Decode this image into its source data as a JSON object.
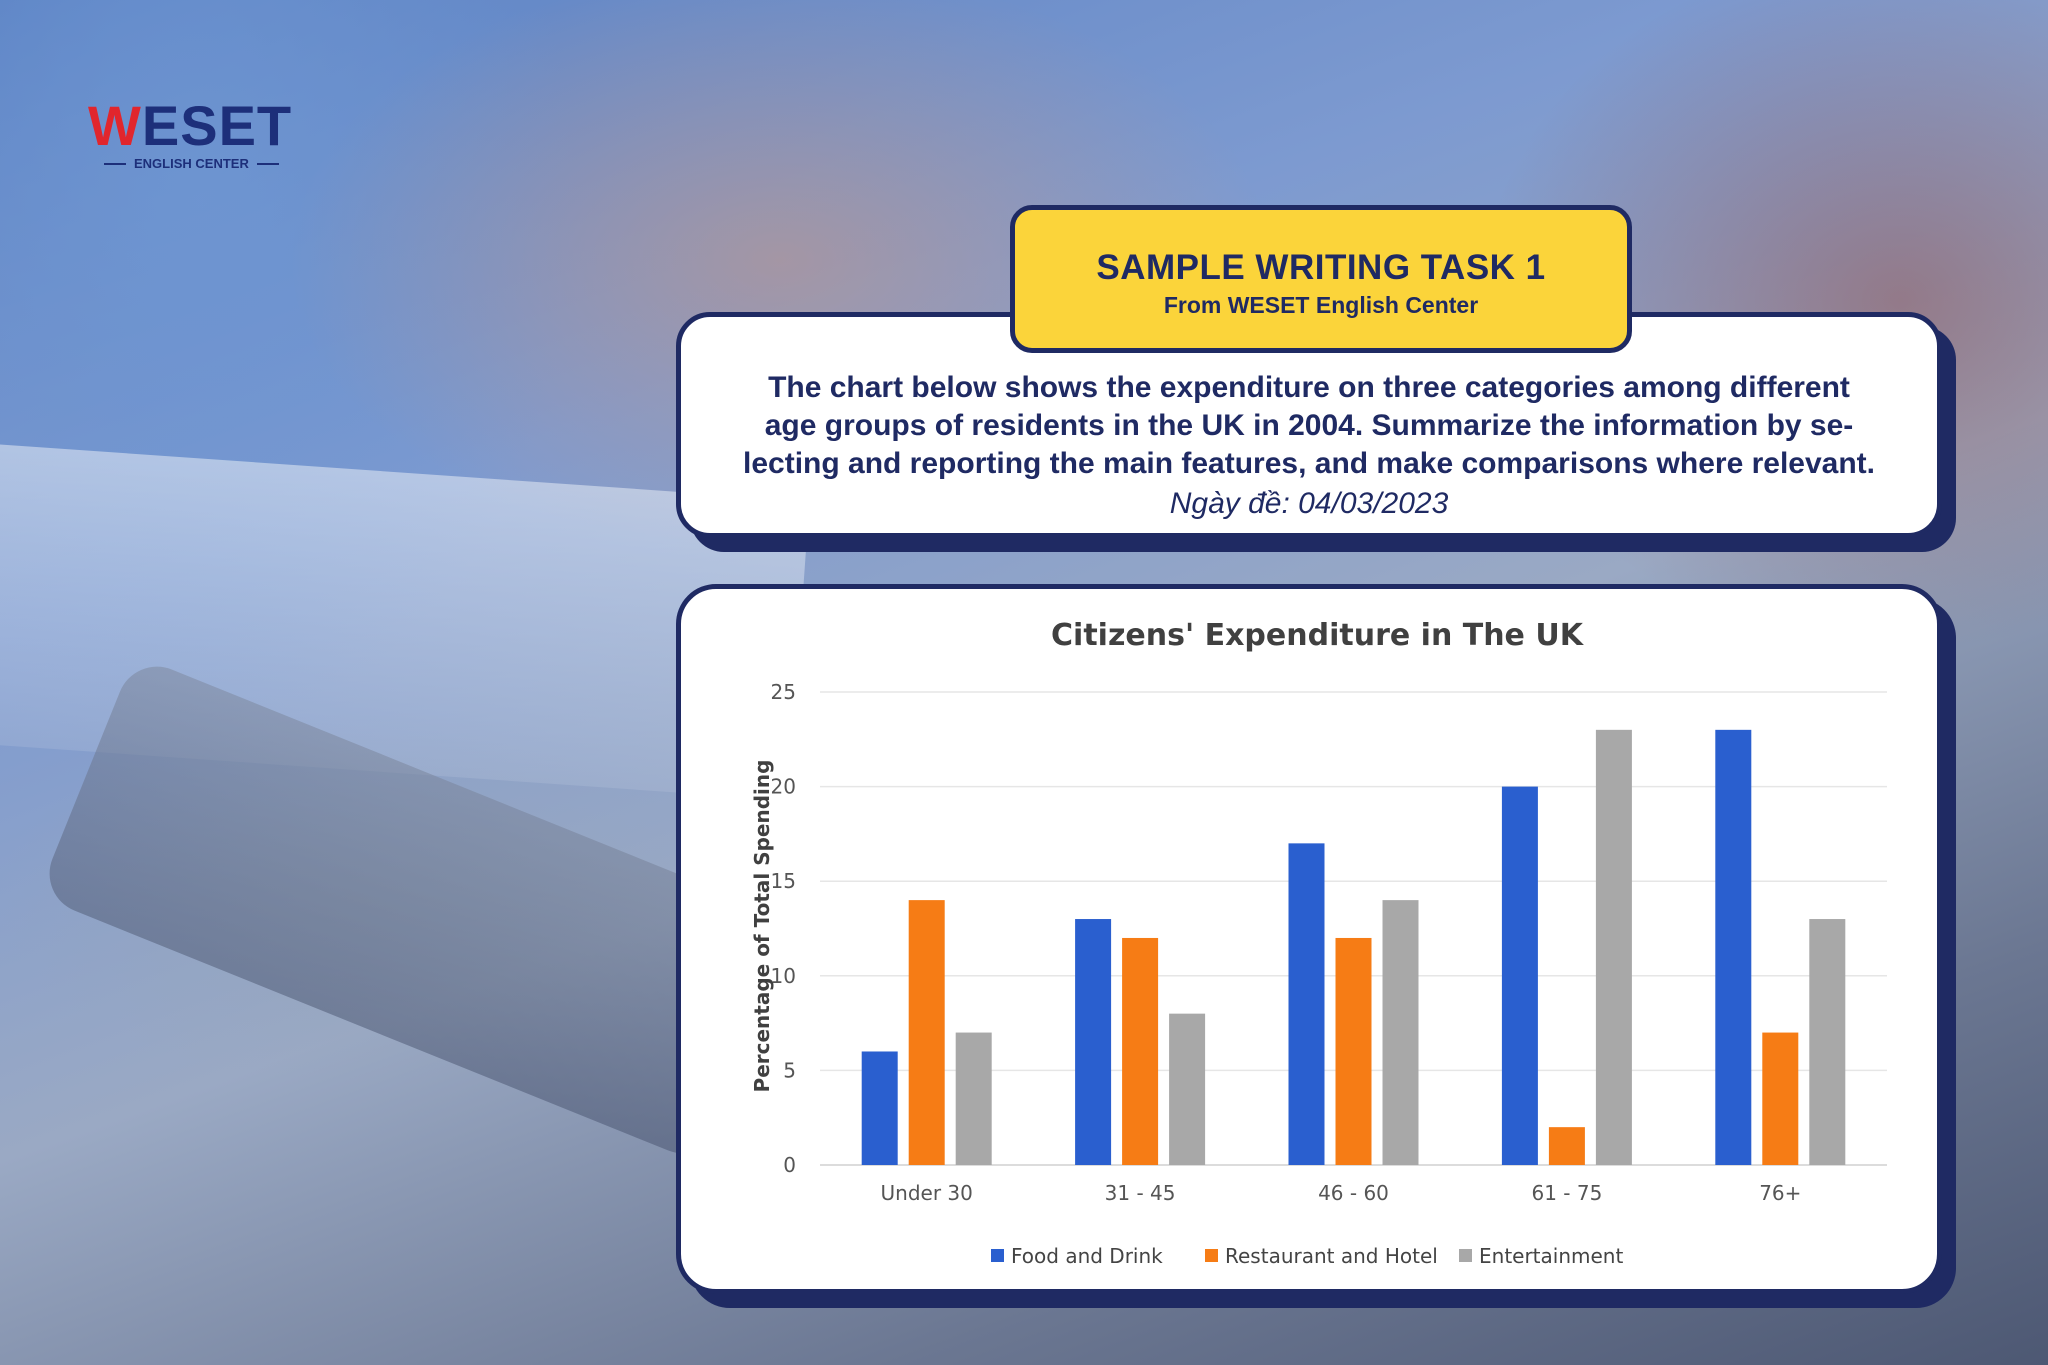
{
  "logo": {
    "brand_start": "W",
    "brand_rest": "ESET",
    "subtitle": "ENGLISH CENTER"
  },
  "badge": {
    "title": "SAMPLE WRITING TASK 1",
    "subtitle": "From WESET English Center"
  },
  "task": {
    "lines": [
      "The chart below shows the expenditure on three categories among different",
      "age groups of residents in the UK in 2004. Summarize the information by se-",
      "lecting and reporting the main features, and make comparisons where relevant."
    ],
    "date": "Ngày đề: 04/03/2023"
  },
  "colors": {
    "navy": "#1f2a63",
    "yellow": "#fbd43a",
    "brand_red": "#e1262d"
  },
  "chart_data": {
    "type": "bar",
    "title": "Citizens' Expenditure in The UK",
    "xlabel": "",
    "ylabel": "Percentage of Total Spending",
    "ylim": [
      0,
      25
    ],
    "yticks": [
      0,
      5,
      10,
      15,
      20,
      25
    ],
    "grid": true,
    "legend_position": "bottom",
    "categories": [
      "Under 30",
      "31 - 45",
      "46 - 60",
      "61 - 75",
      "76+"
    ],
    "series": [
      {
        "name": "Food and Drink",
        "color": "#2a5fcf",
        "values": [
          6,
          13,
          17,
          20,
          23
        ]
      },
      {
        "name": "Restaurant and Hotel",
        "color": "#f67c15",
        "values": [
          14,
          12,
          12,
          2,
          7
        ]
      },
      {
        "name": "Entertainment",
        "color": "#a8a8a8",
        "values": [
          7,
          8,
          14,
          23,
          13
        ]
      }
    ]
  }
}
